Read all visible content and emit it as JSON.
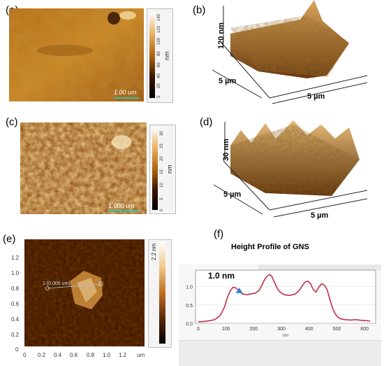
{
  "panels": {
    "a": {
      "label": "(a)",
      "scale_bar": "1.00 um",
      "colorbar_ticks": [
        "140",
        "120",
        "100",
        "80",
        "60",
        "40",
        "20",
        "0"
      ],
      "colorbar_unit": "nm"
    },
    "b": {
      "label": "(b)",
      "z_label": "120 nm",
      "y_label": "5 µm",
      "x_label": "5 µm"
    },
    "c": {
      "label": "(c)",
      "scale_bar": "1.000 um",
      "colorbar_ticks": [
        "30",
        "25",
        "20",
        "15",
        "10",
        "5",
        "0"
      ],
      "colorbar_unit": "nm"
    },
    "d": {
      "label": "(d)",
      "z_label": "30 nm",
      "y_label": "5 µm",
      "x_label": "5 µm"
    },
    "e": {
      "label": "(e)",
      "y_ticks": [
        "1.2",
        "1.0",
        "0.8",
        "0.6",
        "0.4",
        "0.2",
        "0"
      ],
      "x_ticks": [
        "0",
        "0.2",
        "0.4",
        "0.6",
        "0.8",
        "1.0",
        "1.2"
      ],
      "x_unit": "um",
      "colorbar_label": "2.2 nm",
      "marker_text": "1 (0.000 um)"
    },
    "f": {
      "label": "(f)",
      "title": "Height Profile of GNS",
      "annotation": "1.0 nm",
      "x_unit": "nm"
    }
  },
  "chart_data": {
    "type": "line",
    "title": "Height Profile of GNS",
    "xlabel": "nm",
    "ylabel": "",
    "xlim": [
      -10,
      640
    ],
    "ylim": [
      0,
      1.45
    ],
    "x_ticks": [
      0,
      100,
      200,
      300,
      400,
      500,
      600
    ],
    "y_ticks": [
      0,
      0.5,
      1.0
    ],
    "grid": false,
    "series": [
      {
        "color": "#c0304a",
        "x": [
          0,
          20,
          40,
          60,
          80,
          95,
          105,
          115,
          125,
          135,
          145,
          160,
          175,
          190,
          205,
          220,
          230,
          240,
          250,
          258,
          265,
          275,
          285,
          295,
          310,
          330,
          350,
          365,
          375,
          385,
          395,
          405,
          415,
          425,
          435,
          445,
          455,
          465,
          475,
          485,
          495,
          505,
          515,
          530,
          550,
          570,
          590,
          610,
          620
        ],
        "y": [
          0.04,
          0.05,
          0.07,
          0.1,
          0.22,
          0.45,
          0.7,
          0.88,
          0.98,
          0.97,
          0.9,
          0.8,
          0.78,
          0.8,
          0.82,
          0.9,
          1.05,
          1.2,
          1.3,
          1.33,
          1.28,
          1.12,
          0.95,
          0.85,
          0.78,
          0.76,
          0.8,
          0.9,
          1.02,
          1.12,
          1.15,
          1.08,
          0.92,
          0.85,
          0.98,
          1.08,
          1.04,
          0.92,
          0.65,
          0.4,
          0.25,
          0.16,
          0.12,
          0.1,
          0.09,
          0.1,
          0.08,
          0.07,
          0.06
        ]
      }
    ]
  }
}
